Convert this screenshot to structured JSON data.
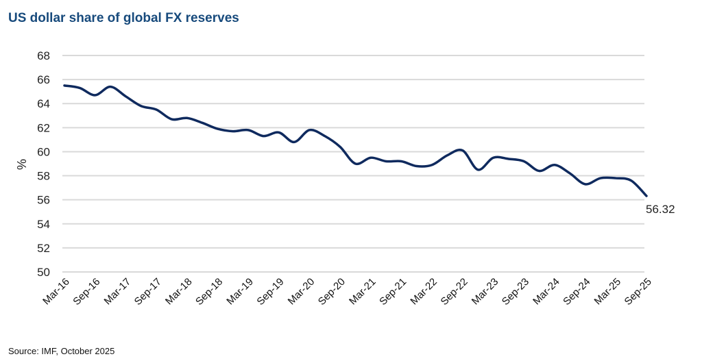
{
  "chart_data": {
    "type": "line",
    "title": "US dollar share of global FX reserves",
    "xlabel": "",
    "ylabel": "%",
    "ylim": [
      50,
      68
    ],
    "yticks": [
      50,
      52,
      54,
      56,
      58,
      60,
      62,
      64,
      66,
      68
    ],
    "grid": true,
    "legend": "none",
    "x_tick_labels": [
      "Mar-16",
      "Sep-16",
      "Mar-17",
      "Sep-17",
      "Mar-18",
      "Sep-18",
      "Mar-19",
      "Sep-19",
      "Mar-20",
      "Sep-20",
      "Mar-21",
      "Sep-21",
      "Mar-22",
      "Sep-22",
      "Mar-23",
      "Sep-23",
      "Mar-24",
      "Sep-24",
      "Mar-25",
      "Sep-25"
    ],
    "x": [
      "Mar-16",
      "Jun-16",
      "Sep-16",
      "Dec-16",
      "Mar-17",
      "Jun-17",
      "Sep-17",
      "Dec-17",
      "Mar-18",
      "Jun-18",
      "Sep-18",
      "Dec-18",
      "Mar-19",
      "Jun-19",
      "Sep-19",
      "Dec-19",
      "Mar-20",
      "Jun-20",
      "Sep-20",
      "Dec-20",
      "Mar-21",
      "Jun-21",
      "Sep-21",
      "Dec-21",
      "Mar-22",
      "Jun-22",
      "Sep-22",
      "Dec-22",
      "Mar-23",
      "Jun-23",
      "Sep-23",
      "Dec-23",
      "Mar-24",
      "Jun-24",
      "Sep-24",
      "Dec-24",
      "Mar-25",
      "Jun-25",
      "Sep-25"
    ],
    "series": [
      {
        "name": "US dollar share",
        "color": "#0f2a5e",
        "values": [
          65.5,
          65.3,
          64.7,
          65.4,
          64.6,
          63.8,
          63.5,
          62.7,
          62.8,
          62.4,
          61.9,
          61.7,
          61.8,
          61.3,
          61.6,
          60.8,
          61.8,
          61.3,
          60.4,
          59.0,
          59.5,
          59.2,
          59.2,
          58.8,
          58.9,
          59.7,
          60.1,
          58.5,
          59.5,
          59.4,
          59.2,
          58.4,
          58.9,
          58.2,
          57.3,
          57.8,
          57.8,
          57.6,
          56.32
        ]
      }
    ],
    "annotations": [
      {
        "text": "56.32",
        "at": "Sep-25"
      }
    ]
  },
  "footer": {
    "source": "Source: IMF, October 2025"
  }
}
